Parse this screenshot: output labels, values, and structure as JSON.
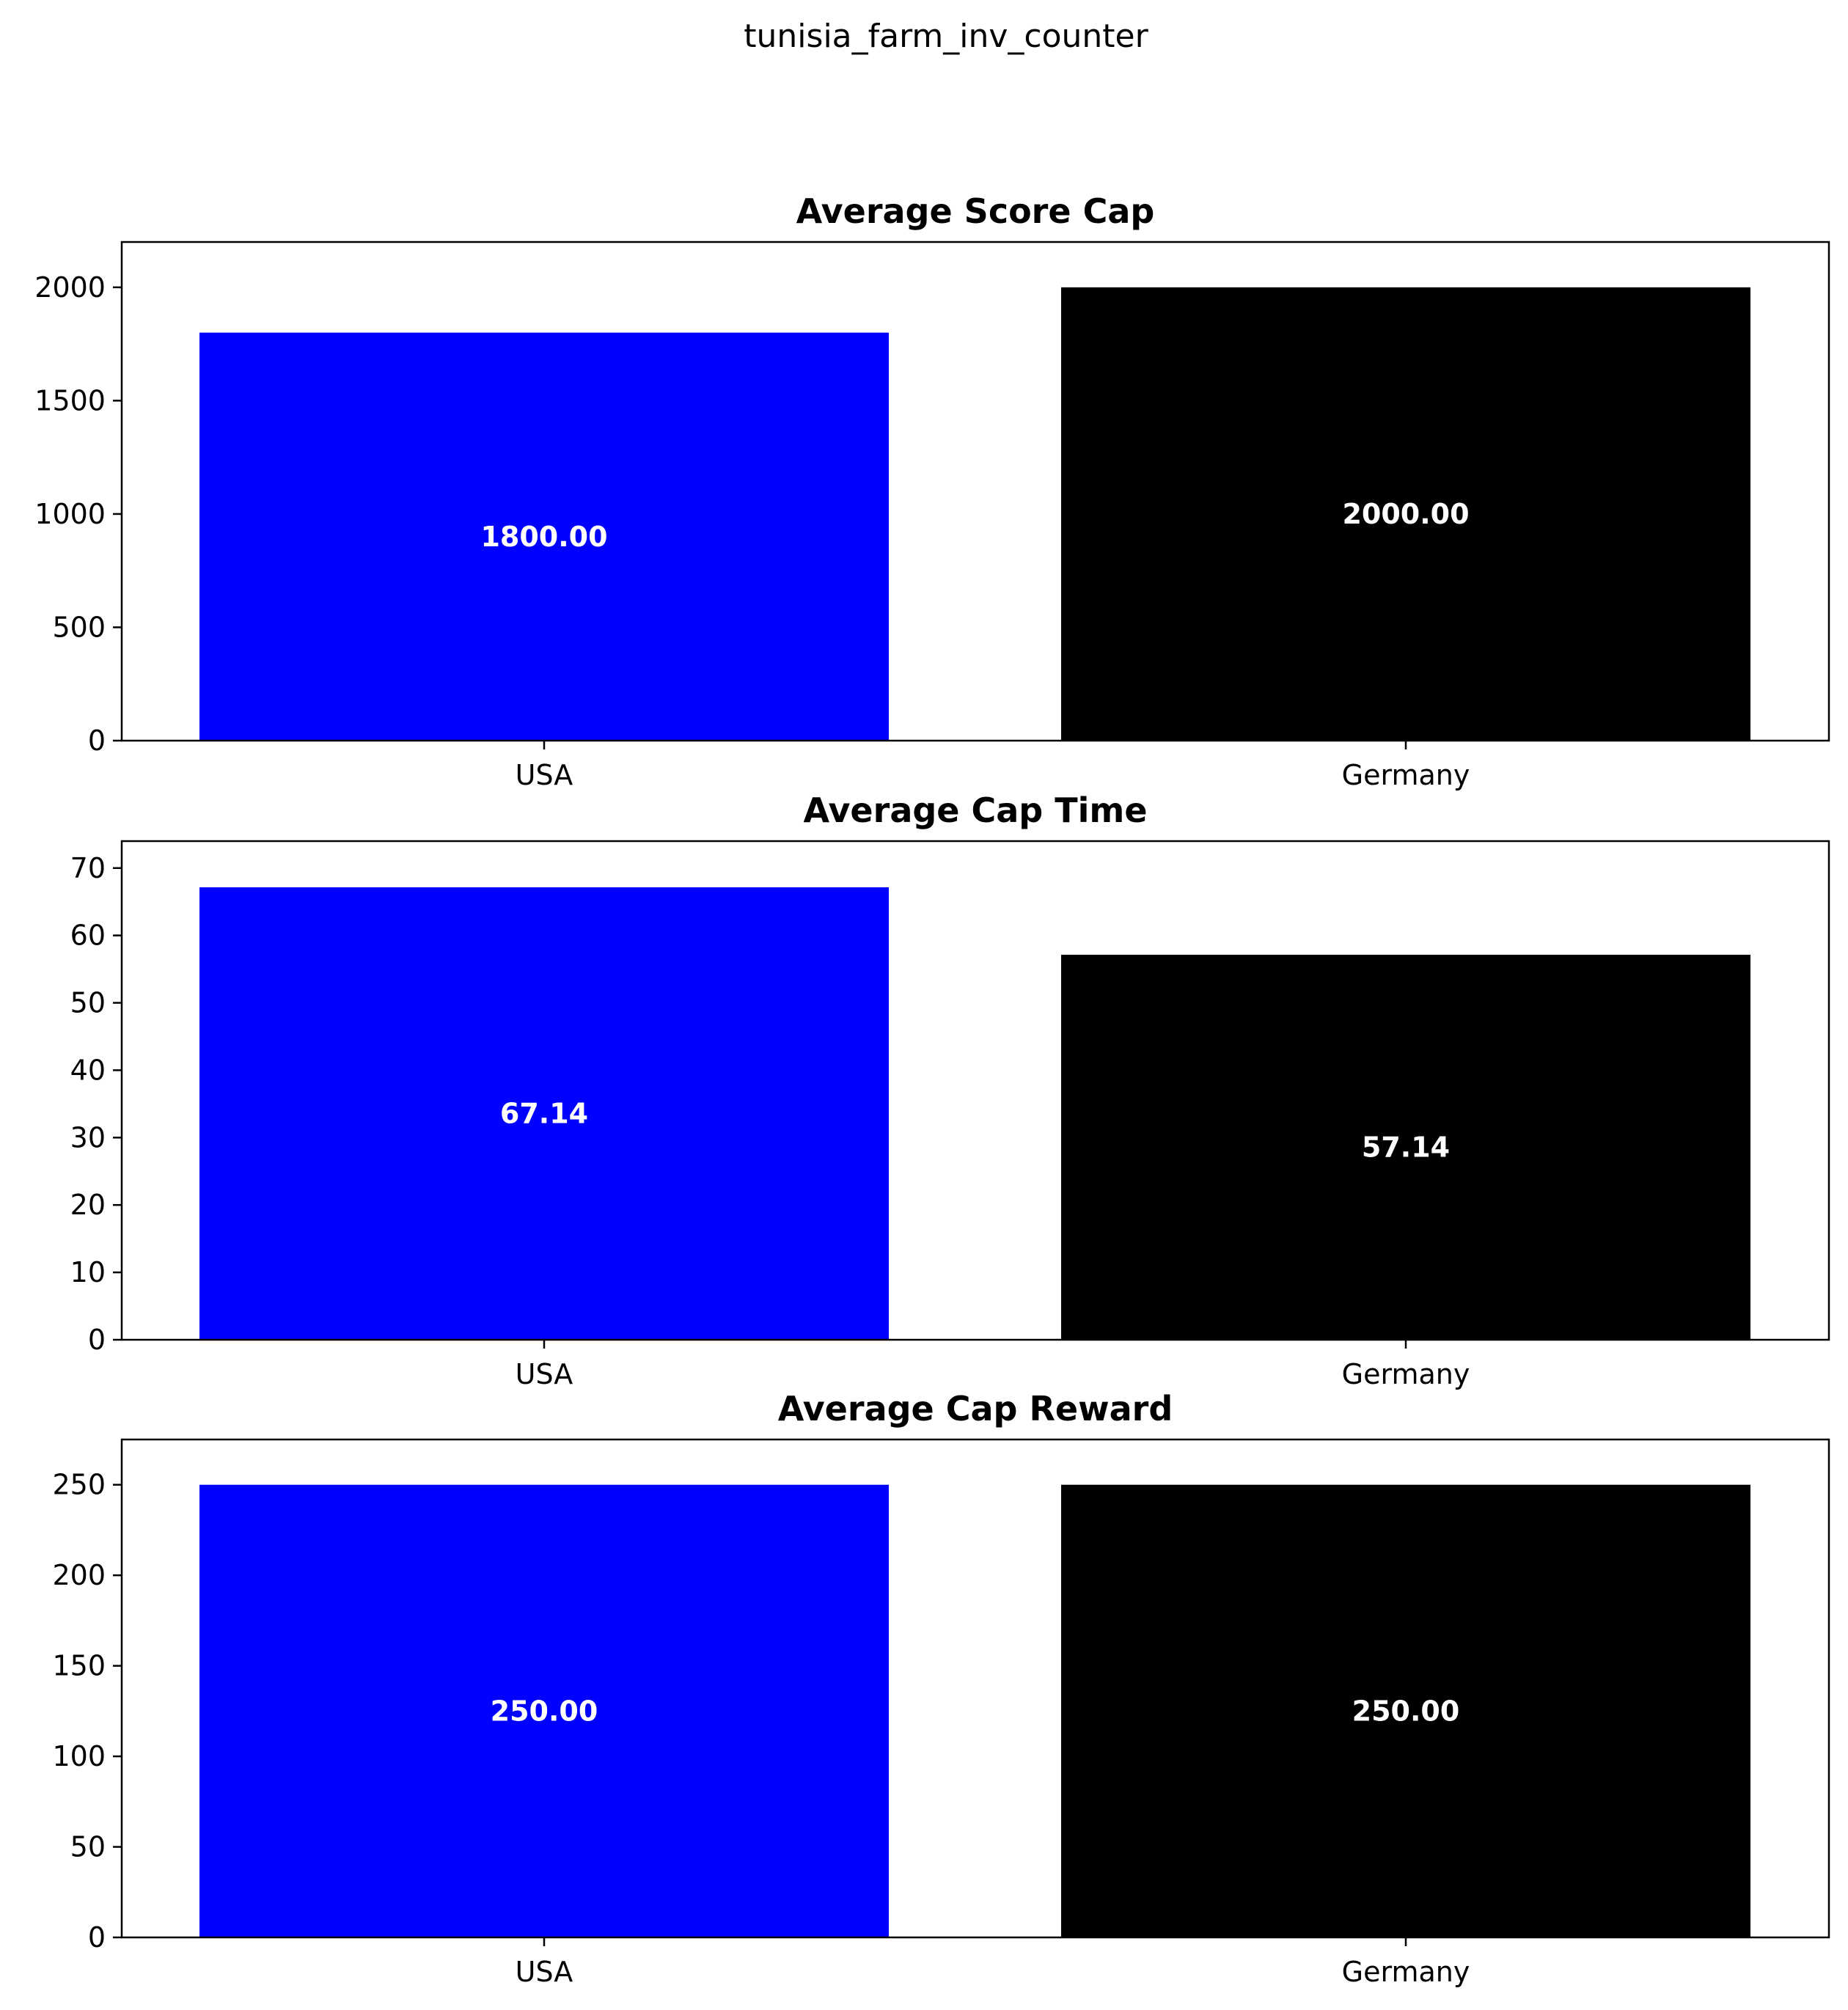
{
  "figure_title": "tunisia_farm_inv_counter",
  "chart_data": [
    {
      "type": "bar",
      "title": "Average Score Cap",
      "categories": [
        "USA",
        "Germany"
      ],
      "values": [
        1800.0,
        2000.0
      ],
      "value_labels": [
        "1800.00",
        "2000.00"
      ],
      "colors": [
        "#0000ff",
        "#000000"
      ],
      "ylim": [
        0,
        2200
      ],
      "yticks": [
        0,
        500,
        1000,
        1500,
        2000
      ],
      "xlabel": "",
      "ylabel": "",
      "grid": false
    },
    {
      "type": "bar",
      "title": "Average Cap Time",
      "categories": [
        "USA",
        "Germany"
      ],
      "values": [
        67.14,
        57.14
      ],
      "value_labels": [
        "67.14",
        "57.14"
      ],
      "colors": [
        "#0000ff",
        "#000000"
      ],
      "ylim": [
        0,
        74
      ],
      "yticks": [
        0,
        10,
        20,
        30,
        40,
        50,
        60,
        70
      ],
      "xlabel": "",
      "ylabel": "",
      "grid": false
    },
    {
      "type": "bar",
      "title": "Average Cap Reward",
      "categories": [
        "USA",
        "Germany"
      ],
      "values": [
        250.0,
        250.0
      ],
      "value_labels": [
        "250.00",
        "250.00"
      ],
      "colors": [
        "#0000ff",
        "#000000"
      ],
      "ylim": [
        0,
        275
      ],
      "yticks": [
        0,
        50,
        100,
        150,
        200,
        250
      ],
      "xlabel": "",
      "ylabel": "",
      "grid": false
    }
  ]
}
